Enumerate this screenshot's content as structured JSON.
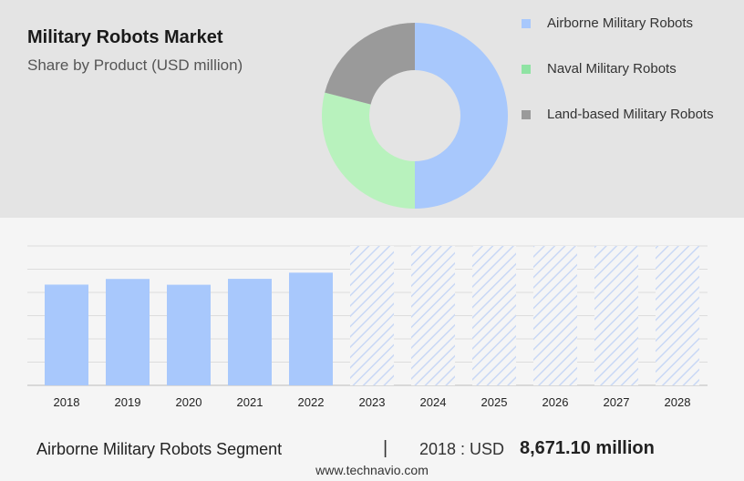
{
  "header": {
    "title": "Military Robots Market",
    "subtitle": "Share by Product (USD million)"
  },
  "legend": [
    {
      "label": "Airborne Military Robots",
      "color": "#a8c8fc"
    },
    {
      "label": "Naval Military Robots",
      "color": "#8fe3a3"
    },
    {
      "label": "Land-based Military Robots",
      "color": "#9a9a9a"
    }
  ],
  "footer": {
    "segment": "Airborne Military Robots Segment",
    "divider": "|",
    "year_label": "2018 : USD",
    "value_label": "8,671.10 million",
    "url": "www.technavio.com"
  },
  "chart_data": [
    {
      "type": "pie",
      "categories": [
        "Airborne Military Robots",
        "Naval Military Robots",
        "Land-based Military Robots"
      ],
      "values": [
        50,
        29,
        21
      ],
      "colors": [
        "#a8c8fc",
        "#b8f2bd",
        "#9a9a9a"
      ]
    },
    {
      "type": "bar",
      "categories": [
        "2018",
        "2019",
        "2020",
        "2021",
        "2022",
        "2023",
        "2024",
        "2025",
        "2026",
        "2027",
        "2028"
      ],
      "values": [
        8671.1,
        9160,
        8660,
        9170,
        9700,
        null,
        null,
        null,
        null,
        null,
        null
      ],
      "forecast_categories": [
        "2023",
        "2024",
        "2025",
        "2026",
        "2027",
        "2028"
      ],
      "ylim": [
        0,
        12000
      ],
      "grid": true,
      "colors": {
        "actual": "#a8c8fc",
        "forecast": "#c9d8f5"
      }
    }
  ]
}
